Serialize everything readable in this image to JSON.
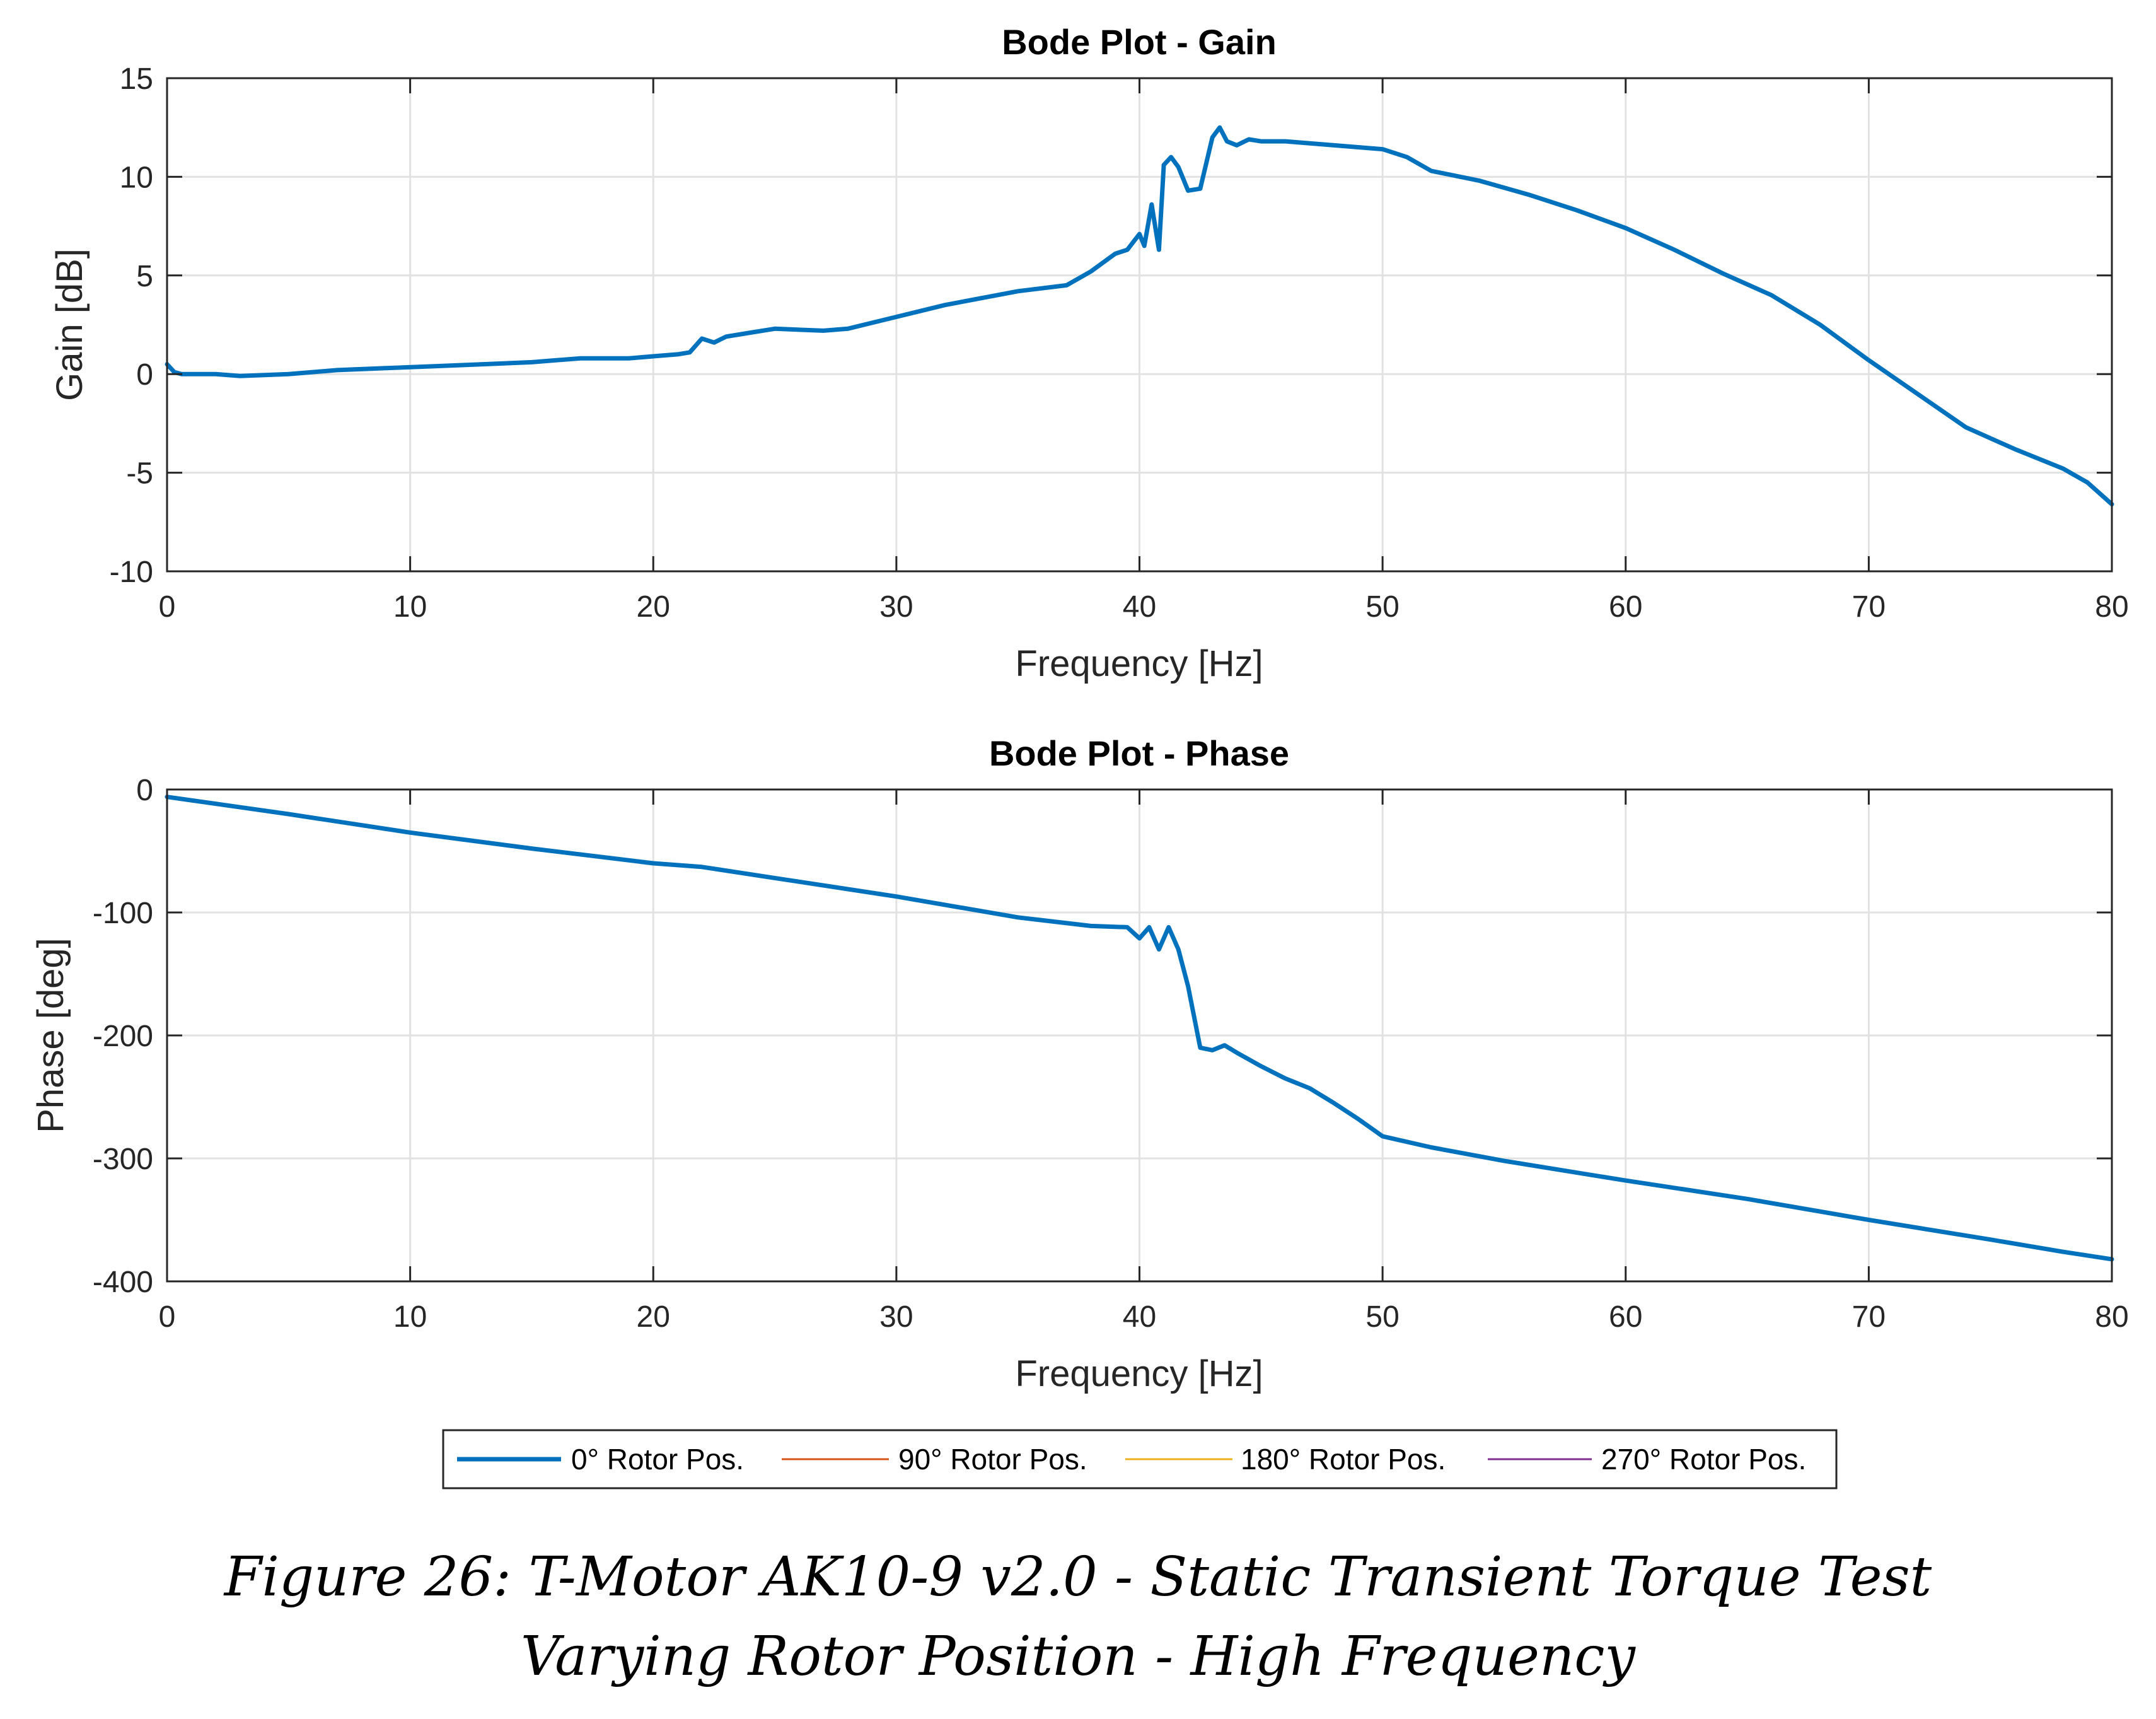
{
  "caption": {
    "line1": "Figure 26: T-Motor AK10-9 v2.0 - Static Transient Torque Test",
    "line2": "Varying Rotor Position - High Frequency"
  },
  "legend": {
    "entries": [
      {
        "label": "0° Rotor Pos.",
        "color": "#0072BD"
      },
      {
        "label": "90° Rotor Pos.",
        "color": "#D95319"
      },
      {
        "label": "180° Rotor Pos.",
        "color": "#EDB120"
      },
      {
        "label": "270° Rotor Pos.",
        "color": "#7E2F8E"
      }
    ]
  },
  "chart_data": [
    {
      "type": "line",
      "title": "Bode Plot - Gain",
      "xlabel": "Frequency [Hz]",
      "ylabel": "Gain [dB]",
      "xlim": [
        0,
        80
      ],
      "ylim": [
        -10,
        15
      ],
      "xticks": [
        0,
        10,
        20,
        30,
        40,
        50,
        60,
        70,
        80
      ],
      "yticks": [
        15,
        10,
        5,
        0,
        -5,
        -10
      ],
      "grid": true,
      "series": [
        {
          "name": "0° Rotor Pos.",
          "color": "#0072BD",
          "x": [
            0,
            0.3,
            0.6,
            2,
            3,
            5,
            7,
            9,
            11,
            13,
            15,
            17,
            19,
            20,
            21,
            21.5,
            22,
            22.5,
            23,
            24,
            25,
            27,
            28,
            30,
            32,
            35,
            37,
            38,
            39,
            39.5,
            40,
            40.2,
            40.5,
            40.8,
            41,
            41.3,
            41.6,
            42,
            42.5,
            43,
            43.3,
            43.6,
            44,
            44.5,
            45,
            46,
            47,
            48,
            49,
            50,
            51,
            52,
            54,
            56,
            58,
            60,
            62,
            64,
            66,
            68,
            70,
            72,
            74,
            76,
            78,
            79,
            80
          ],
          "y": [
            0.5,
            0.1,
            0.0,
            0.0,
            -0.1,
            0.0,
            0.2,
            0.3,
            0.4,
            0.5,
            0.6,
            0.8,
            0.8,
            0.9,
            1.0,
            1.1,
            1.8,
            1.6,
            1.9,
            2.1,
            2.3,
            2.2,
            2.3,
            2.9,
            3.5,
            4.2,
            4.5,
            5.2,
            6.1,
            6.3,
            7.1,
            6.5,
            8.6,
            6.3,
            10.6,
            11.0,
            10.5,
            9.3,
            9.4,
            12.0,
            12.5,
            11.8,
            11.6,
            11.9,
            11.8,
            11.8,
            11.7,
            11.6,
            11.5,
            11.4,
            11.0,
            10.3,
            9.8,
            9.1,
            8.3,
            7.4,
            6.3,
            5.1,
            4.0,
            2.5,
            0.7,
            -1.0,
            -2.7,
            -3.8,
            -4.8,
            -5.5,
            -6.6
          ]
        },
        {
          "name": "90° Rotor Pos.",
          "color": "#D95319",
          "x": [],
          "y": []
        },
        {
          "name": "180° Rotor Pos.",
          "color": "#EDB120",
          "x": [],
          "y": []
        },
        {
          "name": "270° Rotor Pos.",
          "color": "#7E2F8E",
          "x": [],
          "y": []
        }
      ]
    },
    {
      "type": "line",
      "title": "Bode Plot - Phase",
      "xlabel": "Frequency [Hz]",
      "ylabel": "Phase [deg]",
      "xlim": [
        0,
        80
      ],
      "ylim": [
        -400,
        0
      ],
      "xticks": [
        0,
        10,
        20,
        30,
        40,
        50,
        60,
        70,
        80
      ],
      "yticks": [
        0,
        -100,
        -200,
        -300,
        -400
      ],
      "grid": true,
      "series": [
        {
          "name": "0° Rotor Pos.",
          "color": "#0072BD",
          "x": [
            0,
            5,
            10,
            15,
            20,
            22,
            25,
            30,
            35,
            38,
            39.5,
            40,
            40.4,
            40.8,
            41.2,
            41.6,
            42,
            42.5,
            43,
            43.5,
            44,
            45,
            46,
            47,
            48,
            49,
            50,
            52,
            55,
            60,
            65,
            70,
            75,
            78,
            80
          ],
          "y": [
            -6,
            -20,
            -35,
            -48,
            -60,
            -63,
            -72,
            -87,
            -104,
            -111,
            -112,
            -121,
            -112,
            -130,
            -112,
            -130,
            -160,
            -210,
            -212,
            -208,
            -214,
            -225,
            -235,
            -243,
            -255,
            -268,
            -282,
            -291,
            -302,
            -318,
            -333,
            -350,
            -366,
            -376,
            -382
          ]
        },
        {
          "name": "90° Rotor Pos.",
          "color": "#D95319",
          "x": [],
          "y": []
        },
        {
          "name": "180° Rotor Pos.",
          "color": "#EDB120",
          "x": [],
          "y": []
        },
        {
          "name": "270° Rotor Pos.",
          "color": "#7E2F8E",
          "x": [],
          "y": []
        }
      ]
    }
  ]
}
